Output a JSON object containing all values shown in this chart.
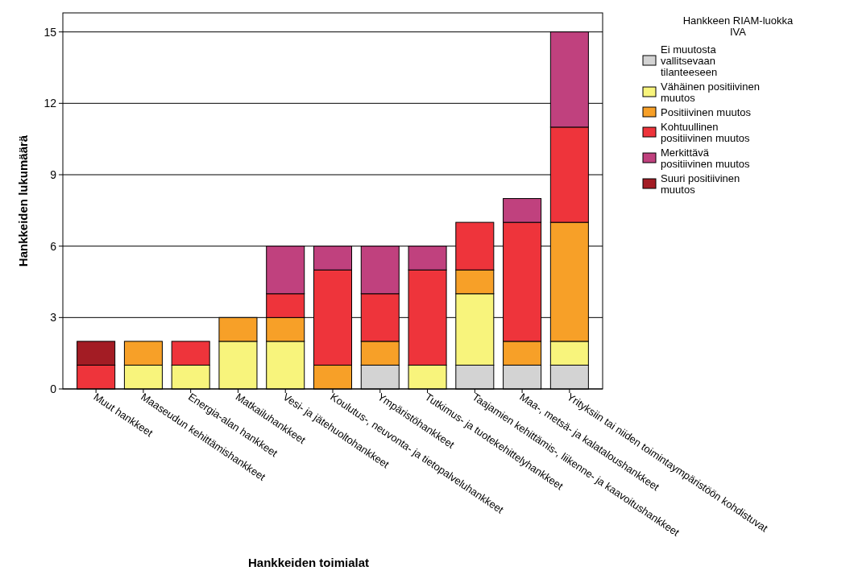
{
  "chart_data": {
    "type": "bar",
    "stacked": true,
    "xlabel": "Hankkeiden toimialat",
    "ylabel": "Hankkeiden lukumäärä",
    "legend_title": "Hankkeen RIAM-luokka IVA",
    "legend": "right",
    "categories": [
      "Muut hankkeet",
      "Maaseudun kehittämishankkeet",
      "Energia-alan hankkeet",
      "Matkailuhankkeet",
      "Vesi- ja jätehuoltohankkeet",
      "Koulutus-, neuvonta- ja tietopalveluhankkeet",
      "Ympäristöhankkeet",
      "Tutkimus- ja tuotekehittelyhankkeet",
      "Taajamien kehittämis-, liikenne- ja kaavoitushankkeet",
      "Maa-, metsä- ja kalataloushankkeet",
      "Yrityksiin tai niiden toimintaympäristöön kohdistuvat"
    ],
    "series": [
      {
        "name": "Ei muutosta vallitsevaan tilanteeseen",
        "color": "#d3d3d3",
        "values": [
          0,
          0,
          0,
          0,
          0,
          0,
          1,
          0,
          1,
          1,
          1
        ]
      },
      {
        "name": "Vähäinen positiivinen muutos",
        "color": "#f8f47c",
        "values": [
          0,
          1,
          1,
          2,
          2,
          0,
          0,
          1,
          3,
          0,
          1
        ]
      },
      {
        "name": "Positiivinen muutos",
        "color": "#f7a028",
        "values": [
          0,
          1,
          0,
          1,
          1,
          1,
          1,
          0,
          1,
          1,
          5
        ]
      },
      {
        "name": "Kohtuullinen positiivinen muutos",
        "color": "#ee343b",
        "values": [
          1,
          0,
          1,
          0,
          1,
          4,
          2,
          4,
          2,
          5,
          4
        ]
      },
      {
        "name": "Merkittävä positiivinen muutos",
        "color": "#c0417e",
        "values": [
          0,
          0,
          0,
          0,
          2,
          1,
          2,
          1,
          0,
          1,
          4
        ]
      },
      {
        "name": "Suuri positiivinen muutos",
        "color": "#a31c24",
        "values": [
          1,
          0,
          0,
          0,
          0,
          0,
          0,
          0,
          0,
          0,
          0
        ]
      }
    ],
    "ylim": [
      0,
      15.8
    ],
    "yticks": [
      0,
      3,
      6,
      9,
      12,
      15
    ],
    "grid": "y"
  }
}
